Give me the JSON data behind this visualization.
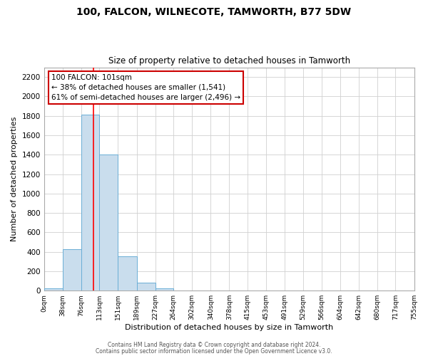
{
  "title": "100, FALCON, WILNECOTE, TAMWORTH, B77 5DW",
  "subtitle": "Size of property relative to detached houses in Tamworth",
  "xlabel": "Distribution of detached houses by size in Tamworth",
  "ylabel": "Number of detached properties",
  "bar_color": "#c9dded",
  "bar_edge_color": "#6aaed6",
  "bin_edges": [
    0,
    38,
    76,
    113,
    151,
    189,
    227,
    264,
    302,
    340,
    378,
    415,
    453,
    491,
    529,
    566,
    604,
    642,
    680,
    717,
    755
  ],
  "bar_heights": [
    20,
    430,
    1810,
    1400,
    350,
    80,
    25,
    0,
    0,
    0,
    0,
    0,
    0,
    0,
    0,
    0,
    0,
    0,
    0,
    0
  ],
  "tick_labels": [
    "0sqm",
    "38sqm",
    "76sqm",
    "113sqm",
    "151sqm",
    "189sqm",
    "227sqm",
    "264sqm",
    "302sqm",
    "340sqm",
    "378sqm",
    "415sqm",
    "453sqm",
    "491sqm",
    "529sqm",
    "566sqm",
    "604sqm",
    "642sqm",
    "680sqm",
    "717sqm",
    "755sqm"
  ],
  "ylim": [
    0,
    2300
  ],
  "yticks": [
    0,
    200,
    400,
    600,
    800,
    1000,
    1200,
    1400,
    1600,
    1800,
    2000,
    2200
  ],
  "red_line_x": 101,
  "annotation_title": "100 FALCON: 101sqm",
  "annotation_line1": "← 38% of detached houses are smaller (1,541)",
  "annotation_line2": "61% of semi-detached houses are larger (2,496) →",
  "annotation_box_color": "#ffffff",
  "annotation_box_edge": "#cc0000",
  "footer_line1": "Contains HM Land Registry data © Crown copyright and database right 2024.",
  "footer_line2": "Contains public sector information licensed under the Open Government Licence v3.0.",
  "background_color": "#ffffff",
  "grid_color": "#d0d0d0"
}
